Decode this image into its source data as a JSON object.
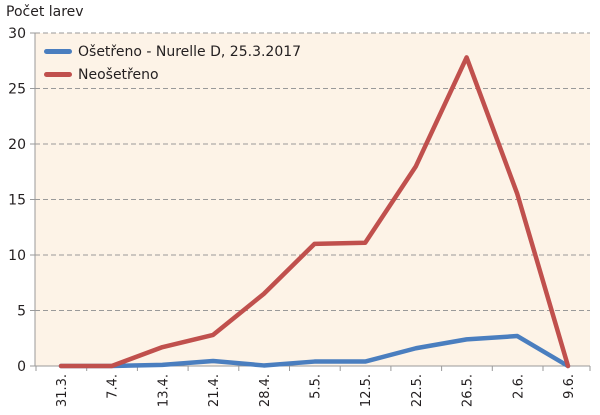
{
  "chart_data": {
    "type": "line",
    "title": "",
    "ylabel": "Počet larev",
    "xlabel": "",
    "categories": [
      "31.3.",
      "7.4.",
      "13.4.",
      "21.4.",
      "28.4.",
      "5.5.",
      "12.5.",
      "22.5.",
      "26.5.",
      "2.6.",
      "9.6."
    ],
    "ylim": [
      0,
      30
    ],
    "yticks": [
      0,
      5,
      10,
      15,
      20,
      25,
      30
    ],
    "grid": "horizontal dashed",
    "legend_position": "top-left",
    "background": "#fdf3e7",
    "series": [
      {
        "name": "Ošetřeno - Nurelle D, 25.3.2017",
        "color": "#4a7ebf",
        "values": [
          0,
          0,
          0.1,
          0.45,
          0.05,
          0.4,
          0.4,
          1.6,
          2.4,
          2.7,
          0
        ]
      },
      {
        "name": "Neošetřeno",
        "color": "#c0504d",
        "values": [
          0,
          0,
          1.7,
          2.8,
          6.5,
          11.0,
          11.1,
          18.0,
          27.8,
          15.5,
          0
        ]
      }
    ]
  }
}
